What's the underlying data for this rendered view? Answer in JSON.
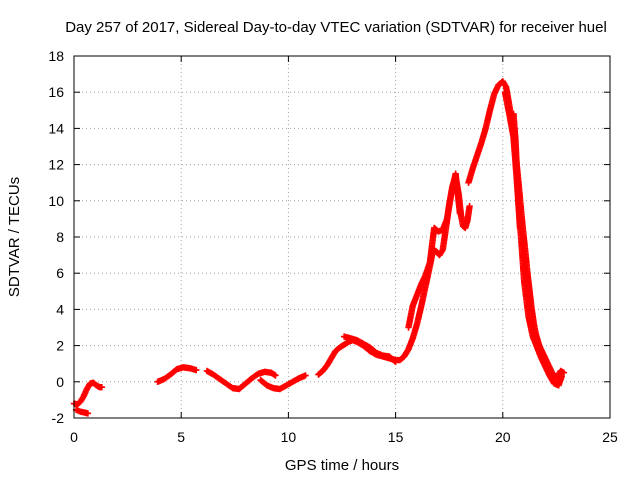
{
  "chart_data": {
    "type": "scatter",
    "title": "Day 257 of 2017, Sidereal Day-to-day VTEC variation (SDTVAR) for receiver huel",
    "xlabel": "GPS time / hours",
    "ylabel": "SDTVAR / TECUs",
    "xlim": [
      0,
      25
    ],
    "ylim": [
      -2,
      18
    ],
    "xticks": [
      "0",
      "5",
      "10",
      "15",
      "20",
      "25"
    ],
    "yticks": [
      "-2",
      "0",
      "2",
      "4",
      "6",
      "8",
      "10",
      "12",
      "14",
      "16",
      "18"
    ],
    "grid": true,
    "marker": "+",
    "color": "#ff0000",
    "series": [
      {
        "name": "SDTVAR",
        "segments": [
          [
            [
              0.0,
              -1.2
            ],
            [
              0.15,
              -1.25
            ],
            [
              0.3,
              -1.1
            ],
            [
              0.45,
              -0.8
            ],
            [
              0.6,
              -0.4
            ],
            [
              0.75,
              -0.1
            ],
            [
              0.9,
              -0.05
            ],
            [
              1.05,
              -0.2
            ],
            [
              1.2,
              -0.3
            ],
            [
              1.3,
              -0.3
            ]
          ],
          [
            [
              0.1,
              -1.55
            ],
            [
              0.3,
              -1.65
            ],
            [
              0.5,
              -1.7
            ],
            [
              0.65,
              -1.75
            ]
          ],
          [
            [
              3.9,
              0.0
            ],
            [
              4.2,
              0.15
            ],
            [
              4.5,
              0.4
            ],
            [
              4.8,
              0.7
            ],
            [
              5.1,
              0.8
            ],
            [
              5.4,
              0.75
            ],
            [
              5.7,
              0.65
            ]
          ],
          [
            [
              6.2,
              0.6
            ],
            [
              6.5,
              0.4
            ],
            [
              6.8,
              0.15
            ],
            [
              7.1,
              -0.1
            ],
            [
              7.4,
              -0.35
            ],
            [
              7.7,
              -0.4
            ],
            [
              8.0,
              -0.1
            ],
            [
              8.3,
              0.2
            ],
            [
              8.6,
              0.45
            ],
            [
              8.9,
              0.55
            ],
            [
              9.2,
              0.5
            ],
            [
              9.4,
              0.35
            ]
          ],
          [
            [
              8.7,
              0.1
            ],
            [
              9.0,
              -0.2
            ],
            [
              9.3,
              -0.35
            ],
            [
              9.6,
              -0.4
            ],
            [
              9.9,
              -0.2
            ],
            [
              10.2,
              0.0
            ],
            [
              10.5,
              0.2
            ],
            [
              10.8,
              0.35
            ]
          ],
          [
            [
              11.4,
              0.4
            ],
            [
              11.6,
              0.6
            ],
            [
              11.8,
              0.9
            ],
            [
              12.0,
              1.3
            ],
            [
              12.2,
              1.7
            ],
            [
              12.4,
              1.9
            ],
            [
              12.6,
              2.05
            ],
            [
              12.8,
              2.2
            ],
            [
              13.0,
              2.3
            ],
            [
              13.2,
              2.2
            ],
            [
              13.5,
              2.0
            ],
            [
              13.8,
              1.7
            ],
            [
              14.1,
              1.5
            ],
            [
              14.4,
              1.4
            ],
            [
              14.7,
              1.3
            ],
            [
              15.0,
              1.2
            ],
            [
              15.2,
              1.2
            ],
            [
              15.4,
              1.4
            ],
            [
              15.6,
              1.8
            ],
            [
              15.8,
              2.4
            ],
            [
              16.0,
              3.2
            ],
            [
              16.2,
              4.2
            ],
            [
              16.4,
              5.3
            ],
            [
              16.6,
              6.4
            ],
            [
              16.75,
              7.3
            ],
            [
              16.9,
              7.2
            ],
            [
              17.05,
              7.0
            ],
            [
              17.2,
              7.3
            ],
            [
              17.35,
              8.5
            ],
            [
              17.5,
              9.8
            ],
            [
              17.65,
              10.8
            ],
            [
              17.75,
              11.2
            ],
            [
              17.85,
              11.0
            ],
            [
              17.95,
              10.3
            ],
            [
              18.05,
              9.2
            ],
            [
              18.15,
              8.6
            ],
            [
              18.25,
              8.5
            ],
            [
              18.35,
              8.9
            ],
            [
              18.45,
              9.7
            ]
          ],
          [
            [
              12.6,
              2.5
            ],
            [
              12.9,
              2.4
            ],
            [
              13.2,
              2.3
            ],
            [
              13.5,
              2.1
            ],
            [
              13.8,
              1.9
            ],
            [
              14.1,
              1.6
            ],
            [
              14.4,
              1.45
            ],
            [
              14.7,
              1.4
            ],
            [
              15.0,
              1.1
            ]
          ],
          [
            [
              15.6,
              3.0
            ],
            [
              15.8,
              4.2
            ],
            [
              16.0,
              4.8
            ],
            [
              16.2,
              5.4
            ],
            [
              16.4,
              5.9
            ],
            [
              16.6,
              6.6
            ],
            [
              16.8,
              8.5
            ],
            [
              17.0,
              8.3
            ],
            [
              17.2,
              8.4
            ],
            [
              17.4,
              9.0
            ],
            [
              17.6,
              10.4
            ],
            [
              17.8,
              11.5
            ],
            [
              18.0,
              9.3
            ]
          ],
          [
            [
              18.4,
              11.0
            ],
            [
              18.6,
              11.8
            ],
            [
              18.8,
              12.5
            ],
            [
              19.0,
              13.2
            ],
            [
              19.2,
              14.0
            ],
            [
              19.4,
              15.0
            ],
            [
              19.6,
              15.9
            ],
            [
              19.8,
              16.4
            ],
            [
              20.0,
              16.6
            ],
            [
              20.15,
              16.3
            ],
            [
              20.3,
              15.3
            ],
            [
              20.45,
              14.2
            ],
            [
              20.55,
              13.0
            ],
            [
              20.65,
              12.0
            ],
            [
              20.75,
              10.8
            ],
            [
              20.85,
              9.5
            ],
            [
              20.95,
              8.3
            ],
            [
              21.05,
              7.2
            ],
            [
              21.15,
              6.0
            ],
            [
              21.25,
              5.0
            ],
            [
              21.35,
              4.0
            ],
            [
              21.45,
              3.2
            ],
            [
              21.55,
              2.6
            ],
            [
              21.7,
              2.0
            ],
            [
              21.9,
              1.5
            ],
            [
              22.1,
              1.0
            ],
            [
              22.3,
              0.5
            ],
            [
              22.5,
              0.2
            ],
            [
              22.7,
              0.6
            ],
            [
              22.85,
              0.5
            ]
          ],
          [
            [
              20.1,
              16.0
            ],
            [
              20.3,
              14.8
            ],
            [
              20.5,
              13.5
            ],
            [
              20.65,
              11.2
            ],
            [
              20.75,
              9.5
            ],
            [
              20.85,
              8.0
            ],
            [
              21.0,
              5.5
            ],
            [
              21.2,
              3.6
            ],
            [
              21.4,
              2.5
            ],
            [
              21.6,
              1.9
            ],
            [
              21.8,
              1.3
            ],
            [
              22.0,
              0.8
            ],
            [
              22.2,
              0.3
            ],
            [
              22.4,
              -0.1
            ],
            [
              22.6,
              -0.2
            ],
            [
              22.75,
              0.3
            ]
          ],
          [
            [
              20.5,
              14.8
            ],
            [
              20.6,
              13.2
            ],
            [
              20.7,
              10.5
            ],
            [
              20.8,
              8.5
            ]
          ]
        ]
      }
    ]
  }
}
